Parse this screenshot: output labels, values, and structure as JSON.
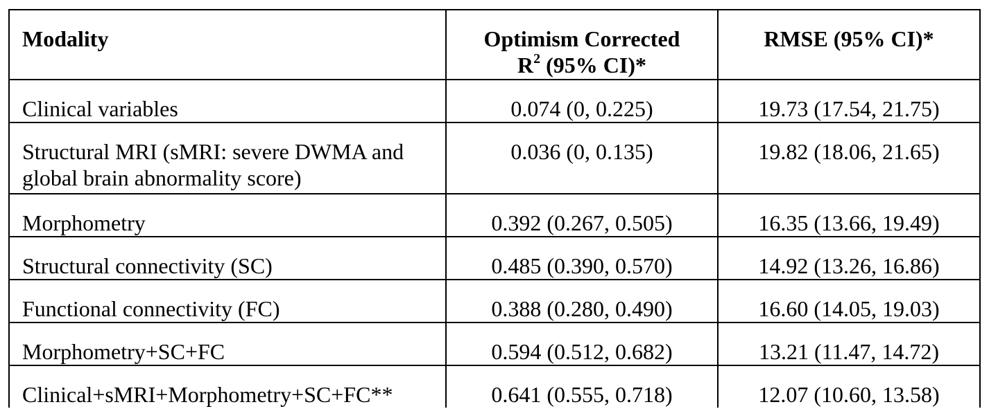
{
  "table": {
    "headers": {
      "modality": "Modality",
      "r2_line1": "Optimism Corrected",
      "r2_symbol": "R",
      "r2_sup": "2",
      "r2_rest": " (95% CI)*",
      "rmse": "RMSE (95% CI)*"
    },
    "rows": [
      {
        "modality": "Clinical variables",
        "r2": "0.074 (0, 0.225)",
        "rmse": "19.73 (17.54, 21.75)"
      },
      {
        "modality": "Structural MRI (sMRI: severe DWMA and global brain abnormality score)",
        "r2": "0.036 (0, 0.135)",
        "rmse": "19.82 (18.06, 21.65)"
      },
      {
        "modality": "Morphometry",
        "r2": "0.392 (0.267, 0.505)",
        "rmse": "16.35 (13.66, 19.49)"
      },
      {
        "modality": "Structural connectivity (SC)",
        "r2": "0.485 (0.390, 0.570)",
        "rmse": "14.92 (13.26, 16.86)"
      },
      {
        "modality": "Functional connectivity (FC)",
        "r2": "0.388 (0.280, 0.490)",
        "rmse": "16.60 (14.05, 19.03)"
      },
      {
        "modality": "Morphometry+SC+FC",
        "r2": "0.594 (0.512, 0.682)",
        "rmse": "13.21 (11.47, 14.72)"
      },
      {
        "modality": "Clinical+sMRI+Morphometry+SC+FC**",
        "r2": "0.641 (0.555, 0.718)",
        "rmse": "12.07 (10.60, 13.58)"
      }
    ]
  }
}
